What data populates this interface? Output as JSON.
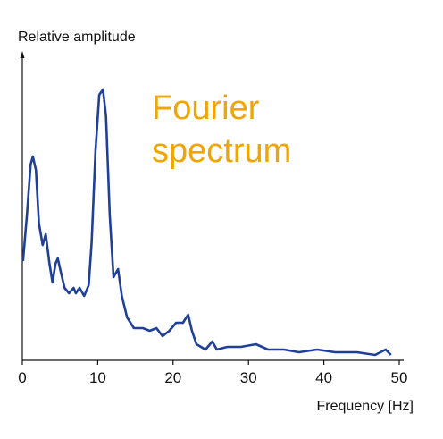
{
  "chart_data": {
    "type": "line",
    "y_label": "Relative amplitude",
    "x_label": "Frequency [Hz]",
    "annotation": [
      "Fourier",
      "spectrum"
    ],
    "annotation_color": "#f0a500",
    "xlim": [
      0,
      50
    ],
    "xticks": [
      0,
      10,
      20,
      30,
      40,
      50
    ],
    "ylim": [
      0,
      1.15
    ],
    "series": [
      {
        "color": "#1f3f99",
        "x": [
          0.1,
          0.6,
          1.1,
          1.4,
          1.8,
          2.2,
          2.7,
          3.1,
          3.6,
          4.0,
          4.4,
          4.7,
          5.1,
          5.6,
          6.2,
          6.8,
          7.1,
          7.6,
          8.2,
          8.8,
          9.2,
          9.7,
          10.2,
          10.7,
          11.1,
          11.6,
          12.1,
          12.7,
          13.2,
          13.9,
          14.8,
          16.0,
          16.9,
          17.8,
          18.6,
          19.5,
          20.4,
          21.3,
          22.0,
          22.5,
          23.1,
          24.3,
          25.2,
          25.8,
          27.2,
          29.0,
          31.0,
          32.6,
          34.7,
          36.7,
          39.1,
          41.5,
          44.4,
          46.8,
          48.2,
          48.9
        ],
        "values": [
          0.37,
          0.54,
          0.73,
          0.76,
          0.71,
          0.51,
          0.43,
          0.47,
          0.36,
          0.29,
          0.36,
          0.38,
          0.33,
          0.27,
          0.25,
          0.27,
          0.25,
          0.27,
          0.24,
          0.28,
          0.44,
          0.78,
          0.99,
          1.01,
          0.91,
          0.54,
          0.31,
          0.34,
          0.24,
          0.16,
          0.12,
          0.12,
          0.11,
          0.12,
          0.09,
          0.11,
          0.14,
          0.14,
          0.17,
          0.11,
          0.06,
          0.04,
          0.07,
          0.04,
          0.05,
          0.05,
          0.06,
          0.04,
          0.04,
          0.03,
          0.04,
          0.03,
          0.03,
          0.02,
          0.04,
          0.02
        ]
      }
    ]
  }
}
